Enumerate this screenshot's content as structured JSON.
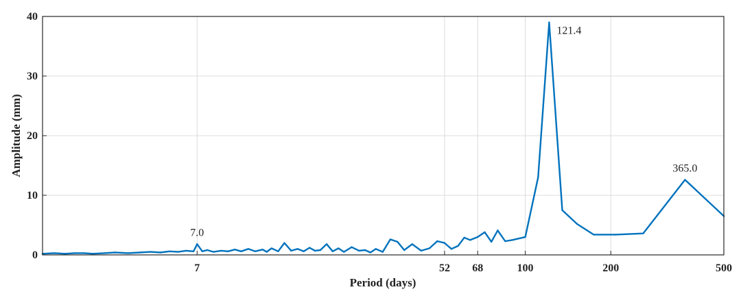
{
  "chart_data": {
    "type": "line",
    "xlabel": "Period (days)",
    "ylabel": "Amplitude (mm)",
    "xscale": "log",
    "xlim": [
      2,
      500
    ],
    "ylim": [
      0,
      40
    ],
    "grid": true,
    "color": "#0072BD",
    "x_ticks": [
      7,
      52,
      68,
      100,
      200,
      500
    ],
    "y_ticks": [
      0,
      10,
      20,
      30,
      40
    ],
    "series": [
      {
        "x": [
          2,
          2.2,
          2.4,
          2.6,
          2.8,
          3.0,
          3.3,
          3.6,
          4.0,
          4.4,
          4.8,
          5.2,
          5.6,
          6.0,
          6.4,
          6.8,
          7.0,
          7.3,
          7.6,
          8.0,
          8.5,
          9.0,
          9.5,
          10.0,
          10.6,
          11.2,
          11.9,
          12.3,
          12.8,
          13.5,
          14.2,
          15.0,
          15.8,
          16.6,
          17.4,
          18.2,
          19.0,
          20.0,
          21.0,
          22.0,
          23.0,
          24.5,
          26.0,
          27.3,
          28.5,
          29.8,
          31.5,
          33.5,
          35.5,
          37.5,
          40.0,
          43.0,
          46.0,
          49.0,
          52.0,
          55.0,
          58.0,
          61.0,
          64.0,
          68.0,
          72.0,
          76.0,
          80.0,
          85.0,
          90.0,
          100.0,
          111.0,
          121.4,
          135.0,
          152.0,
          174.0,
          208.0,
          260.0,
          365.0,
          500.0
        ],
        "y": [
          0.2,
          0.3,
          0.2,
          0.3,
          0.3,
          0.2,
          0.3,
          0.4,
          0.3,
          0.4,
          0.5,
          0.4,
          0.6,
          0.5,
          0.7,
          0.6,
          1.8,
          0.6,
          0.8,
          0.5,
          0.7,
          0.6,
          0.9,
          0.6,
          1.0,
          0.6,
          0.9,
          0.5,
          1.1,
          0.6,
          2.0,
          0.7,
          1.0,
          0.6,
          1.2,
          0.7,
          0.8,
          1.8,
          0.6,
          1.1,
          0.5,
          1.3,
          0.7,
          0.8,
          0.4,
          1.0,
          0.5,
          2.6,
          2.2,
          0.8,
          1.8,
          0.7,
          1.1,
          2.3,
          2.0,
          1.0,
          1.5,
          2.9,
          2.5,
          3.0,
          3.8,
          2.2,
          4.1,
          2.3,
          2.5,
          3.0,
          13.0,
          39.0,
          7.5,
          5.2,
          3.4,
          3.4,
          3.6,
          12.6,
          6.5
        ]
      }
    ],
    "annotations": [
      {
        "text": "7.0",
        "x": 7.0,
        "y": 1.8
      },
      {
        "text": "121.4",
        "x": 121.4,
        "y": 39.0
      },
      {
        "text": "365.0",
        "x": 365.0,
        "y": 12.6
      }
    ]
  }
}
